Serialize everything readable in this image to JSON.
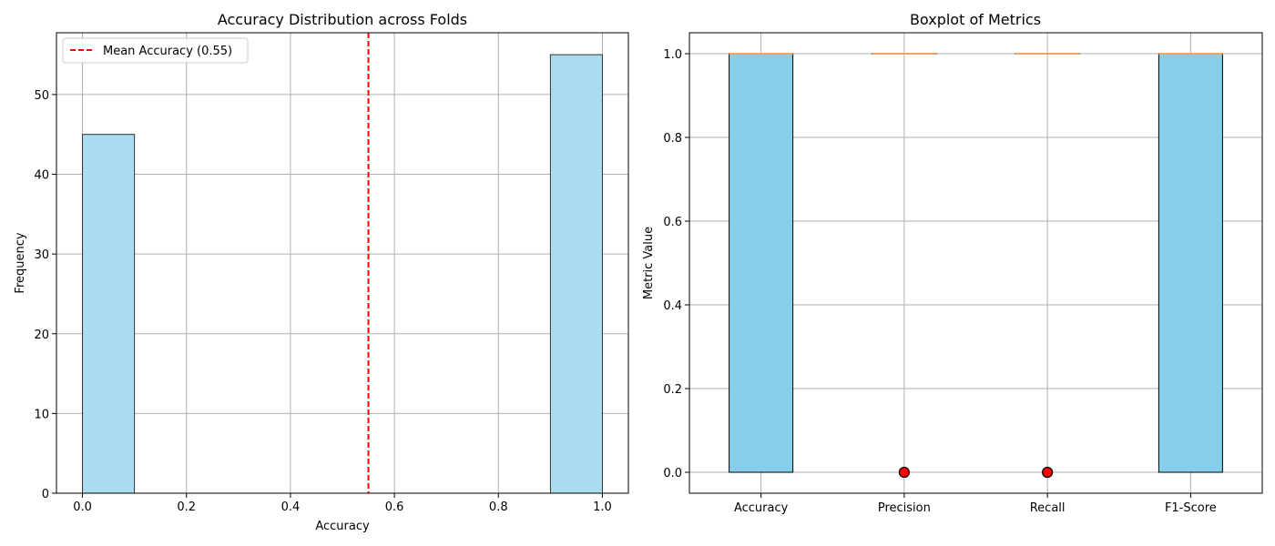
{
  "chart_data": [
    {
      "type": "histogram",
      "title": "Accuracy Distribution across Folds",
      "xlabel": "Accuracy",
      "ylabel": "Frequency",
      "xlim": [
        -0.05,
        1.05
      ],
      "ylim": [
        0,
        57.75
      ],
      "x_ticks": [
        0.0,
        0.2,
        0.4,
        0.6,
        0.8,
        1.0
      ],
      "x_tick_labels": [
        "0.0",
        "0.2",
        "0.4",
        "0.6",
        "0.8",
        "1.0"
      ],
      "y_ticks": [
        0,
        10,
        20,
        30,
        40,
        50
      ],
      "y_tick_labels": [
        "0",
        "10",
        "20",
        "30",
        "40",
        "50"
      ],
      "bins": [
        {
          "start": 0.0,
          "end": 0.1,
          "count": 45
        },
        {
          "start": 0.1,
          "end": 0.2,
          "count": 0
        },
        {
          "start": 0.2,
          "end": 0.3,
          "count": 0
        },
        {
          "start": 0.3,
          "end": 0.4,
          "count": 0
        },
        {
          "start": 0.4,
          "end": 0.5,
          "count": 0
        },
        {
          "start": 0.5,
          "end": 0.6,
          "count": 0
        },
        {
          "start": 0.6,
          "end": 0.7,
          "count": 0
        },
        {
          "start": 0.7,
          "end": 0.8,
          "count": 0
        },
        {
          "start": 0.8,
          "end": 0.9,
          "count": 0
        },
        {
          "start": 0.9,
          "end": 1.0,
          "count": 55
        }
      ],
      "bar_color": "#aadcf0",
      "bar_edge_color": "#333333",
      "mean_line": {
        "value": 0.55,
        "label": "Mean Accuracy (0.55)",
        "color": "#ff0000",
        "style": "dashed"
      },
      "legend": "top-left",
      "grid": true
    },
    {
      "type": "boxplot",
      "title": "Boxplot of Metrics",
      "xlabel": "",
      "ylabel": "Metric Value",
      "ylim": [
        -0.05,
        1.05
      ],
      "y_ticks": [
        0.0,
        0.2,
        0.4,
        0.6,
        0.8,
        1.0
      ],
      "y_tick_labels": [
        "0.0",
        "0.2",
        "0.4",
        "0.6",
        "0.8",
        "1.0"
      ],
      "categories": [
        "Accuracy",
        "Precision",
        "Recall",
        "F1-Score"
      ],
      "boxes": [
        {
          "whisker_low": 0,
          "q1": 0,
          "median": 1,
          "q3": 1,
          "whisker_high": 1,
          "outliers": []
        },
        {
          "whisker_low": 1,
          "q1": 1,
          "median": 1,
          "q3": 1,
          "whisker_high": 1,
          "outliers": [
            0
          ]
        },
        {
          "whisker_low": 1,
          "q1": 1,
          "median": 1,
          "q3": 1,
          "whisker_high": 1,
          "outliers": [
            0
          ]
        },
        {
          "whisker_low": 0,
          "q1": 0,
          "median": 1,
          "q3": 1,
          "whisker_high": 1,
          "outliers": []
        }
      ],
      "box_color": "#87ceeb",
      "box_edge_color": "#000000",
      "median_color": "#f4a460",
      "outlier_color": "#ff0000",
      "grid": true
    }
  ]
}
